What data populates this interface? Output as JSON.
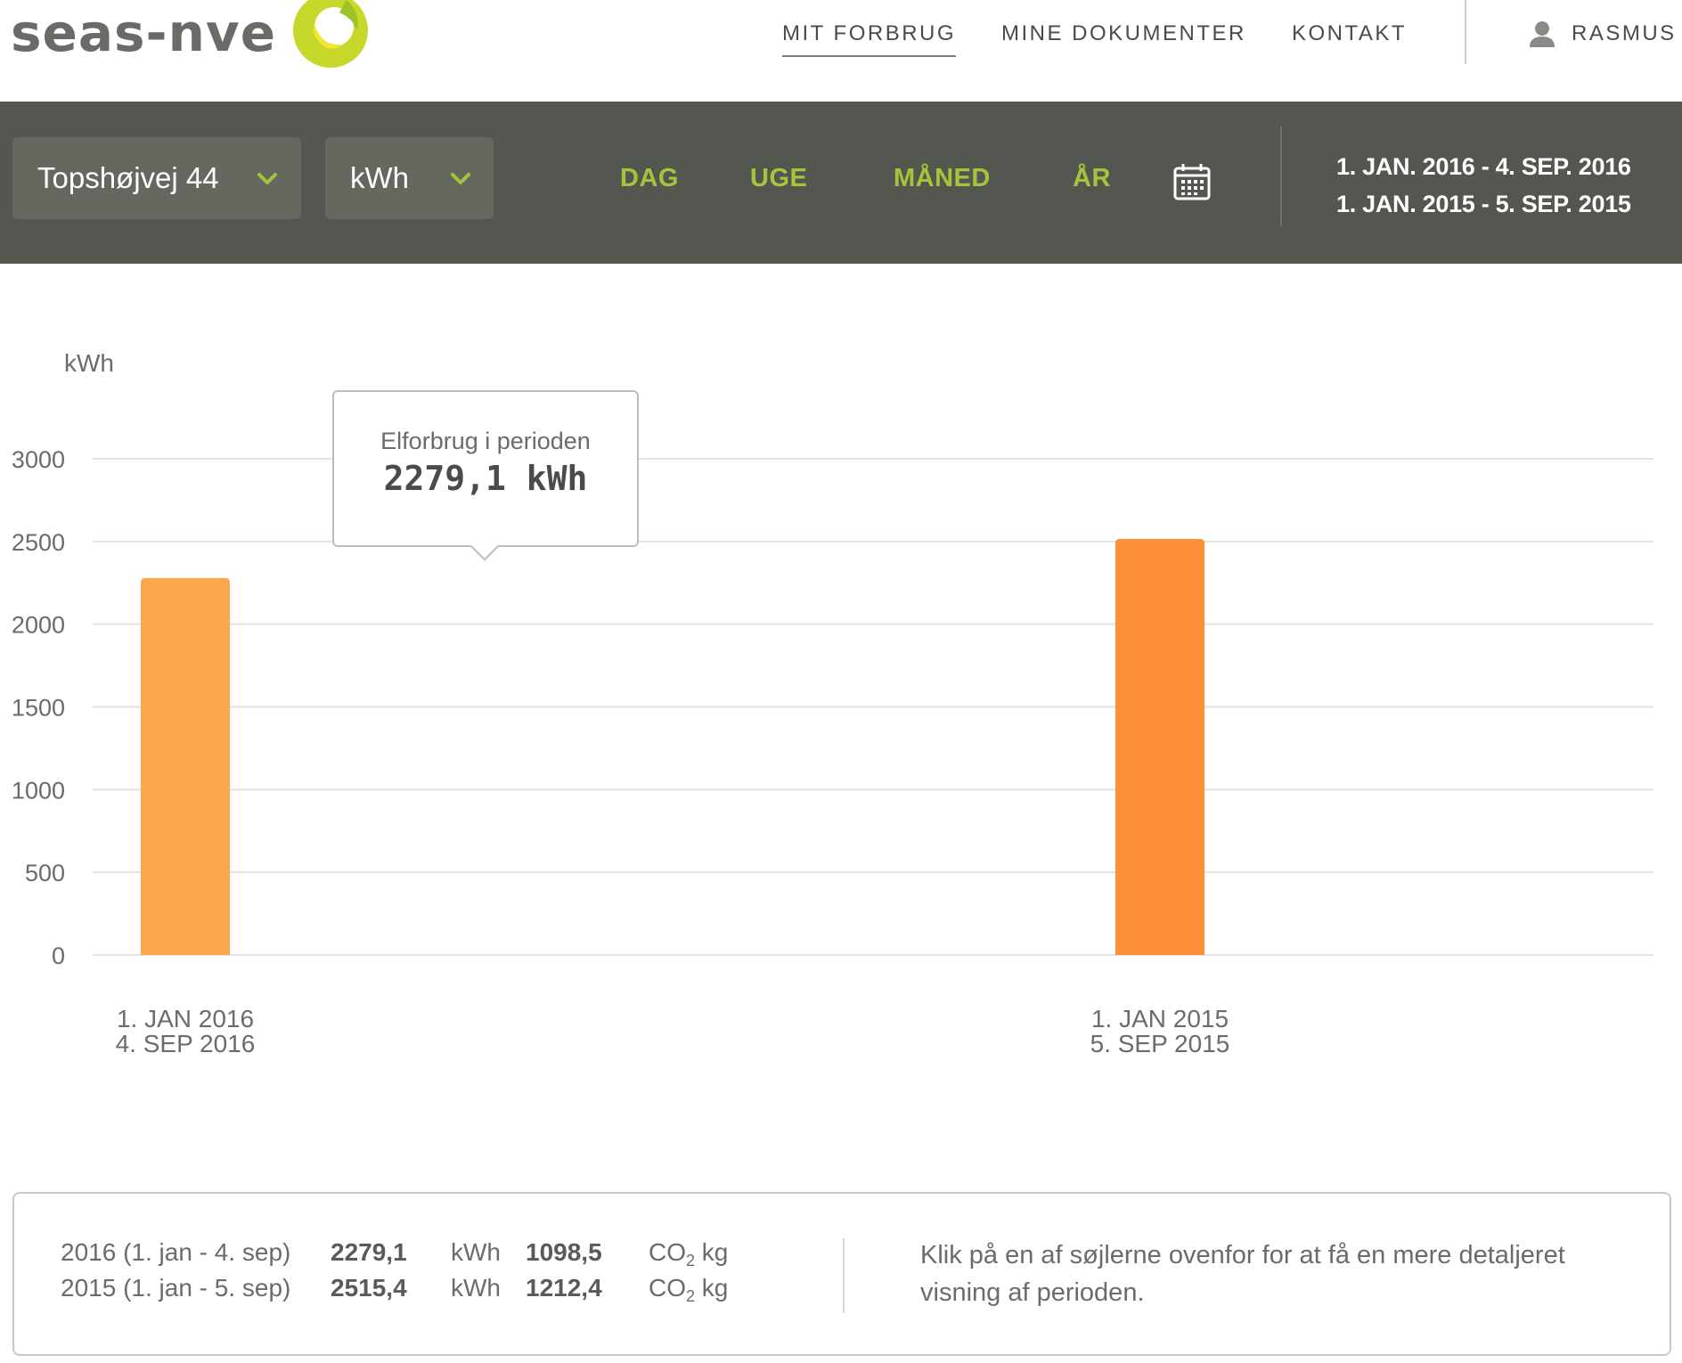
{
  "brand": {
    "logo_text": "seas-nve",
    "logo_colors": {
      "outer": "#c6d92b",
      "inner": "#f2e634"
    }
  },
  "nav": {
    "items": [
      {
        "label": "MIT FORBRUG",
        "active": true
      },
      {
        "label": "MINE DOKUMENTER",
        "active": false
      },
      {
        "label": "KONTAKT",
        "active": false
      }
    ],
    "user": {
      "icon": "user-icon",
      "name": "RASMUS"
    }
  },
  "toolbar": {
    "address_select": {
      "value": "Topshøjvej 44",
      "icon": "chevron-down-icon"
    },
    "unit_select": {
      "value": "kWh",
      "icon": "chevron-down-icon"
    },
    "periods": [
      "DAG",
      "UGE",
      "MÅNED",
      "ÅR"
    ],
    "calendar_icon": "calendar-icon",
    "date_ranges": [
      "1. JAN. 2016 - 4. SEP. 2016",
      "1. JAN. 2015 - 5. SEP. 2015"
    ],
    "colors": {
      "background": "#545750",
      "accent": "#a3c43b"
    }
  },
  "tooltip": {
    "label": "Elforbrug i perioden",
    "value": "2279,1 kWh"
  },
  "chart_data": {
    "type": "bar",
    "ylabel": "kWh",
    "ylim": [
      0,
      3000
    ],
    "yticks": [
      0,
      500,
      1000,
      1500,
      2000,
      2500,
      3000
    ],
    "grid": true,
    "categories": [
      {
        "line1": "1. JAN 2016",
        "line2": "4. SEP 2016"
      },
      {
        "line1": "1. JAN 2015",
        "line2": "5. SEP 2015"
      }
    ],
    "values": [
      2279.1,
      2515.4
    ],
    "colors": [
      "#fca74c",
      "#fc913a"
    ]
  },
  "summary": {
    "rows": [
      {
        "period": "2016 (1. jan - 4. sep)",
        "kwh": "2279,1",
        "kwh_unit": "kWh",
        "co2": "1098,5",
        "co2_prefix": "CO",
        "co2_sub": "2",
        "co2_unit": "kg"
      },
      {
        "period": "2015 (1. jan - 5. sep)",
        "kwh": "2515,4",
        "kwh_unit": "kWh",
        "co2": "1212,4",
        "co2_prefix": "CO",
        "co2_sub": "2",
        "co2_unit": "kg"
      }
    ],
    "hint": "Klik på en af søjlerne ovenfor for at få en mere detaljeret visning af perioden."
  }
}
